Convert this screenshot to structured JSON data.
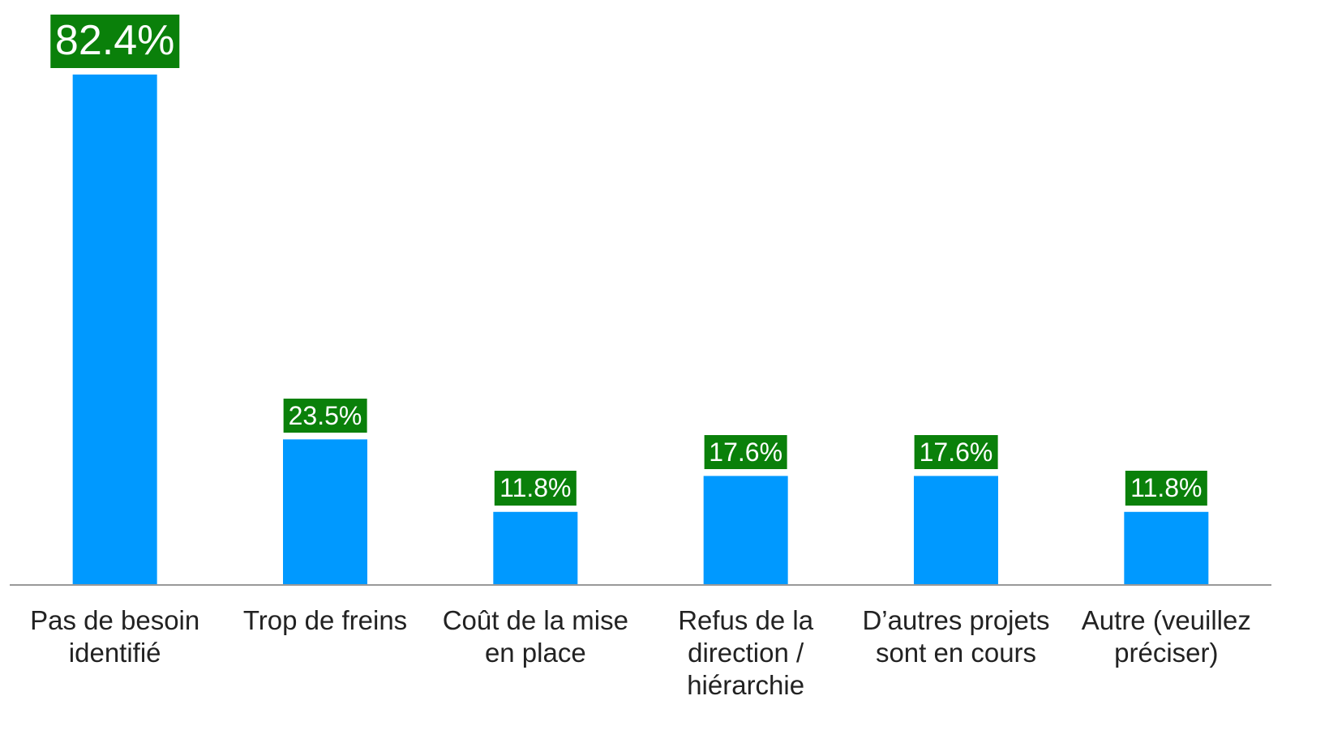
{
  "chart_data": {
    "type": "bar",
    "categories": [
      "Pas de besoin identifié",
      "Trop de freins",
      "Coût de la mise en place",
      "Refus de la direction / hiérarchie",
      "D’autres projets sont en cours",
      "Autre (veuillez préciser)"
    ],
    "values": [
      82.4,
      23.5,
      11.8,
      17.6,
      17.6,
      11.8
    ],
    "value_labels": [
      "82.4%",
      "23.5%",
      "11.8%",
      "17.6%",
      "17.6%",
      "11.8%"
    ],
    "color": "#0099ff",
    "ylim": [
      0,
      82.4
    ]
  }
}
